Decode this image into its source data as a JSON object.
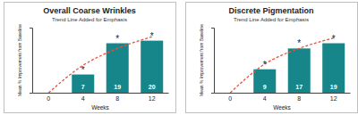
{
  "chart_data": [
    {
      "type": "bar",
      "title": "Overall Coarse Wrinkles",
      "subtitle": "Trend Line Added for Emphasis",
      "x_label": "Weeks",
      "y_label": "Mean % Improvement from Baseline",
      "categories": [
        "0",
        "4",
        "8",
        "12"
      ],
      "series": [
        {
          "type": "bar",
          "color": "#17868a",
          "data_labels": true,
          "values": [
            null,
            7,
            19,
            20
          ]
        },
        {
          "type": "line",
          "color": "#e5533d",
          "line_style": "dashed",
          "values": [
            0,
            10.5,
            17,
            21.5
          ]
        }
      ],
      "annotations": [
        null,
        "*",
        "*",
        "*"
      ],
      "ylim": [
        0,
        25
      ],
      "tick_labels": "x"
    },
    {
      "type": "bar",
      "title": "Discrete Pigmentation",
      "subtitle": "Trend Line Added for Emphasis",
      "x_label": "Weeks",
      "y_label": "Mean % Improvement from Baseline",
      "categories": [
        "0",
        "4",
        "8",
        "12"
      ],
      "series": [
        {
          "type": "bar",
          "color": "#17868a",
          "data_labels": true,
          "values": [
            null,
            9,
            17,
            19
          ]
        },
        {
          "type": "line",
          "color": "#e5533d",
          "line_style": "dashed",
          "values": [
            0,
            11,
            17,
            21
          ]
        }
      ],
      "annotations": [
        null,
        "*",
        "*",
        "*"
      ],
      "ylim": [
        0,
        25
      ],
      "tick_labels": "x"
    }
  ]
}
